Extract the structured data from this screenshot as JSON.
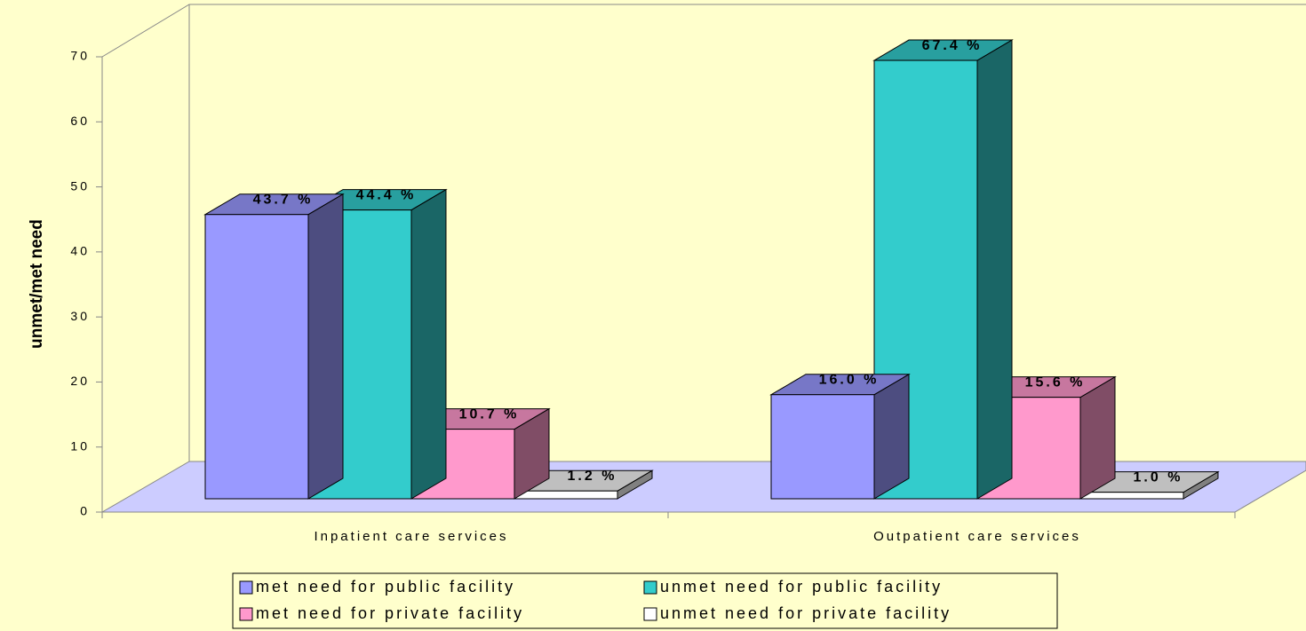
{
  "chart_data": {
    "type": "bar3d",
    "y_label": "unmet/met need",
    "categories": [
      "Inpatient care services",
      "Outpatient care services"
    ],
    "series": [
      {
        "name": "met need for public facility",
        "color": "#9999ff",
        "values": [
          43.7,
          16.0
        ],
        "value_labels": [
          "43.7 %",
          "16.0 %"
        ]
      },
      {
        "name": "unmet need for public facility",
        "color": "#33cccc",
        "values": [
          44.4,
          67.4
        ],
        "value_labels": [
          "44.4 %",
          "67.4 %"
        ]
      },
      {
        "name": "met need for private facility",
        "color": "#ff99cc",
        "values": [
          10.7,
          15.6
        ],
        "value_labels": [
          "10.7 %",
          "15.6 %"
        ]
      },
      {
        "name": "unmet need for private facility",
        "color": "#ffffff",
        "values": [
          1.2,
          1.0
        ],
        "value_labels": [
          "1.2 %",
          "1.0 %"
        ]
      }
    ],
    "ylim": [
      0,
      70
    ],
    "yticks": [
      0,
      10,
      20,
      30,
      40,
      50,
      60,
      70
    ]
  }
}
